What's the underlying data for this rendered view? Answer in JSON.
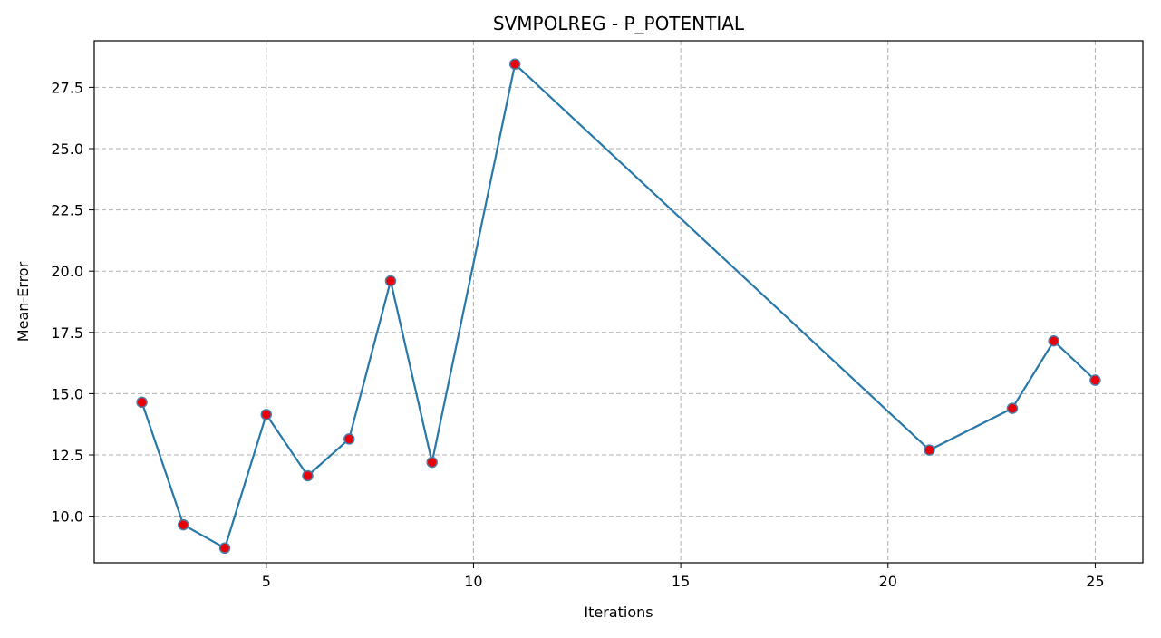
{
  "chart_data": {
    "type": "line",
    "title": "SVMPOLREG - P_POTENTIAL",
    "xlabel": "Iterations",
    "ylabel": "Mean-Error",
    "xlim": [
      0.85,
      26.15
    ],
    "ylim": [
      8.1,
      29.4
    ],
    "xticks": [
      5,
      10,
      15,
      20,
      25
    ],
    "yticks": [
      10.0,
      12.5,
      15.0,
      17.5,
      20.0,
      22.5,
      25.0,
      27.5
    ],
    "grid": true,
    "grid_style": "dashed",
    "line_color": "#2878a8",
    "marker_color": "#e8000b",
    "marker_edge_color": "#4c7fa8",
    "series": [
      {
        "x": [
          2,
          3,
          4,
          5,
          6,
          7,
          8,
          9,
          11,
          21,
          23,
          24,
          25
        ],
        "values": [
          14.65,
          9.65,
          8.7,
          14.15,
          11.65,
          13.15,
          19.6,
          12.2,
          28.45,
          12.7,
          14.4,
          17.15,
          15.55
        ]
      }
    ]
  }
}
